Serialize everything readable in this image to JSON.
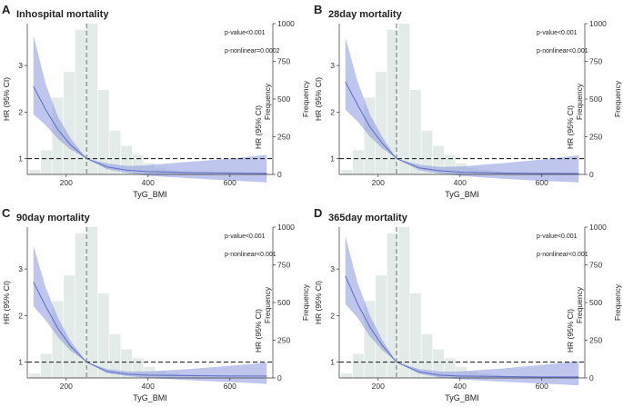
{
  "figure": {
    "background": "#ffffff"
  },
  "style": {
    "bar_color": "#e3ebe9",
    "ci_color": "#8a97de",
    "line_color": "#6272c9",
    "ref_line_color": "#111111",
    "vline_color": "#8a8a8a"
  },
  "chart_data": [
    {
      "letter": "A",
      "title": "Inhospital mortality",
      "p_value": "p-value<0.001",
      "p_nonlinear": "p-nonlinear=0.0002",
      "type": "line",
      "x_range": [
        105,
        705
      ],
      "x_ticks": [
        200,
        400,
        600
      ],
      "xlabel": "TyG_BMI",
      "y_left_range": [
        0.66,
        3.9
      ],
      "y_left_ticks": [
        1,
        2,
        3
      ],
      "ylabel_left": "HR (95% CI)",
      "y_right_range": [
        0,
        1000
      ],
      "y_right_ticks": [
        0,
        250,
        500,
        750,
        1000
      ],
      "ylabel_right": "Frequency",
      "reference_hr": 1,
      "knot_x": 250,
      "hist_bins": [
        [
          110,
          138
        ],
        [
          138,
          166
        ],
        [
          166,
          194
        ],
        [
          194,
          222
        ],
        [
          222,
          250
        ],
        [
          250,
          278
        ],
        [
          278,
          306
        ],
        [
          306,
          334
        ],
        [
          334,
          362
        ],
        [
          362,
          390
        ],
        [
          390,
          418
        ],
        [
          418,
          446
        ],
        [
          446,
          474
        ],
        [
          474,
          502
        ],
        [
          502,
          530
        ],
        [
          530,
          558
        ]
      ],
      "hist_counts": [
        30,
        160,
        510,
        680,
        960,
        1000,
        560,
        290,
        190,
        130,
        75,
        45,
        30,
        18,
        10,
        5
      ],
      "curve": {
        "x": [
          120,
          150,
          180,
          210,
          250,
          300,
          350,
          400,
          500,
          600,
          690
        ],
        "hr": [
          2.55,
          2.05,
          1.62,
          1.3,
          1.0,
          0.82,
          0.75,
          0.72,
          0.7,
          0.69,
          0.68
        ],
        "lower": [
          1.95,
          1.72,
          1.42,
          1.2,
          1.0,
          0.77,
          0.69,
          0.63,
          0.58,
          0.53,
          0.49
        ],
        "upper": [
          3.65,
          2.6,
          1.9,
          1.45,
          1.0,
          0.9,
          0.84,
          0.86,
          0.93,
          1.0,
          1.08
        ]
      }
    },
    {
      "letter": "B",
      "title": "28day mortality",
      "p_value": "p-value<0.001",
      "p_nonlinear": "p-nonlinear<0.001",
      "type": "line",
      "x_range": [
        105,
        705
      ],
      "x_ticks": [
        200,
        400,
        600
      ],
      "xlabel": "TyG_BMI",
      "y_left_range": [
        0.66,
        3.9
      ],
      "y_left_ticks": [
        1,
        2,
        3
      ],
      "ylabel_left": "HR (95% CI)",
      "y_right_range": [
        0,
        1000
      ],
      "y_right_ticks": [
        0,
        250,
        500,
        750,
        1000
      ],
      "ylabel_right": "Frequency",
      "reference_hr": 1,
      "knot_x": 245,
      "hist_bins": [
        [
          110,
          138
        ],
        [
          138,
          166
        ],
        [
          166,
          194
        ],
        [
          194,
          222
        ],
        [
          222,
          250
        ],
        [
          250,
          278
        ],
        [
          278,
          306
        ],
        [
          306,
          334
        ],
        [
          334,
          362
        ],
        [
          362,
          390
        ],
        [
          390,
          418
        ],
        [
          418,
          446
        ],
        [
          446,
          474
        ],
        [
          474,
          502
        ],
        [
          502,
          530
        ],
        [
          530,
          558
        ]
      ],
      "hist_counts": [
        30,
        160,
        510,
        680,
        960,
        1000,
        560,
        290,
        190,
        130,
        75,
        45,
        30,
        18,
        10,
        5
      ],
      "curve": {
        "x": [
          120,
          150,
          180,
          210,
          245,
          300,
          350,
          400,
          500,
          600,
          690
        ],
        "hr": [
          2.65,
          2.15,
          1.68,
          1.33,
          1.0,
          0.8,
          0.74,
          0.71,
          0.69,
          0.68,
          0.68
        ],
        "lower": [
          2.05,
          1.8,
          1.47,
          1.22,
          1.0,
          0.75,
          0.68,
          0.63,
          0.57,
          0.52,
          0.49
        ],
        "upper": [
          3.6,
          2.65,
          1.95,
          1.47,
          1.0,
          0.87,
          0.82,
          0.83,
          0.9,
          0.98,
          1.07
        ]
      }
    },
    {
      "letter": "C",
      "title": "90day mortality",
      "p_value": "p-value<0.001",
      "p_nonlinear": "p-nonlinear<0.001",
      "type": "line",
      "x_range": [
        105,
        705
      ],
      "x_ticks": [
        200,
        400,
        600
      ],
      "xlabel": "TyG_BMI",
      "y_left_range": [
        0.66,
        3.9
      ],
      "y_left_ticks": [
        1,
        2,
        3
      ],
      "ylabel_left": "HR (95% CI)",
      "y_right_range": [
        0,
        1000
      ],
      "y_right_ticks": [
        0,
        250,
        500,
        750,
        1000
      ],
      "ylabel_right": "Frequency",
      "reference_hr": 1,
      "knot_x": 250,
      "hist_bins": [
        [
          110,
          138
        ],
        [
          138,
          166
        ],
        [
          166,
          194
        ],
        [
          194,
          222
        ],
        [
          222,
          250
        ],
        [
          250,
          278
        ],
        [
          278,
          306
        ],
        [
          306,
          334
        ],
        [
          334,
          362
        ],
        [
          362,
          390
        ],
        [
          390,
          418
        ],
        [
          418,
          446
        ],
        [
          446,
          474
        ],
        [
          474,
          502
        ],
        [
          502,
          530
        ],
        [
          530,
          558
        ]
      ],
      "hist_counts": [
        30,
        160,
        510,
        680,
        960,
        1000,
        560,
        290,
        190,
        130,
        75,
        45,
        30,
        18,
        10,
        5
      ],
      "curve": {
        "x": [
          120,
          150,
          180,
          210,
          250,
          300,
          350,
          400,
          500,
          600,
          690
        ],
        "hr": [
          2.72,
          2.2,
          1.72,
          1.35,
          1.0,
          0.8,
          0.74,
          0.72,
          0.71,
          0.7,
          0.7
        ],
        "lower": [
          2.2,
          1.9,
          1.53,
          1.25,
          1.0,
          0.76,
          0.7,
          0.66,
          0.61,
          0.57,
          0.53
        ],
        "upper": [
          3.5,
          2.6,
          1.95,
          1.46,
          1.0,
          0.85,
          0.8,
          0.8,
          0.85,
          0.92,
          0.99
        ]
      }
    },
    {
      "letter": "D",
      "title": "365day mortality",
      "p_value": "p-value<0.001",
      "p_nonlinear": "p-nonlinear<0.001",
      "type": "line",
      "x_range": [
        105,
        705
      ],
      "x_ticks": [
        200,
        400,
        600
      ],
      "xlabel": "TyG_BMI",
      "y_left_range": [
        0.66,
        3.9
      ],
      "y_left_ticks": [
        1,
        2,
        3
      ],
      "ylabel_left": "HR (95% CI)",
      "y_right_range": [
        0,
        1000
      ],
      "y_right_ticks": [
        0,
        250,
        500,
        750,
        1000
      ],
      "ylabel_right": "Frequency",
      "reference_hr": 1,
      "knot_x": 245,
      "hist_bins": [
        [
          110,
          138
        ],
        [
          138,
          166
        ],
        [
          166,
          194
        ],
        [
          194,
          222
        ],
        [
          222,
          250
        ],
        [
          250,
          278
        ],
        [
          278,
          306
        ],
        [
          306,
          334
        ],
        [
          334,
          362
        ],
        [
          362,
          390
        ],
        [
          390,
          418
        ],
        [
          418,
          446
        ],
        [
          446,
          474
        ],
        [
          474,
          502
        ],
        [
          502,
          530
        ],
        [
          530,
          558
        ]
      ],
      "hist_counts": [
        30,
        160,
        510,
        680,
        960,
        1000,
        560,
        290,
        190,
        130,
        75,
        45,
        30,
        18,
        10,
        5
      ],
      "curve": {
        "x": [
          120,
          150,
          180,
          210,
          245,
          300,
          350,
          400,
          500,
          600,
          690
        ],
        "hr": [
          2.85,
          2.25,
          1.75,
          1.36,
          1.0,
          0.79,
          0.72,
          0.7,
          0.69,
          0.68,
          0.68
        ],
        "lower": [
          2.25,
          1.95,
          1.55,
          1.26,
          1.0,
          0.75,
          0.67,
          0.63,
          0.58,
          0.54,
          0.5
        ],
        "upper": [
          3.7,
          2.7,
          2.0,
          1.48,
          1.0,
          0.85,
          0.8,
          0.8,
          0.86,
          0.94,
          1.02
        ]
      }
    }
  ]
}
